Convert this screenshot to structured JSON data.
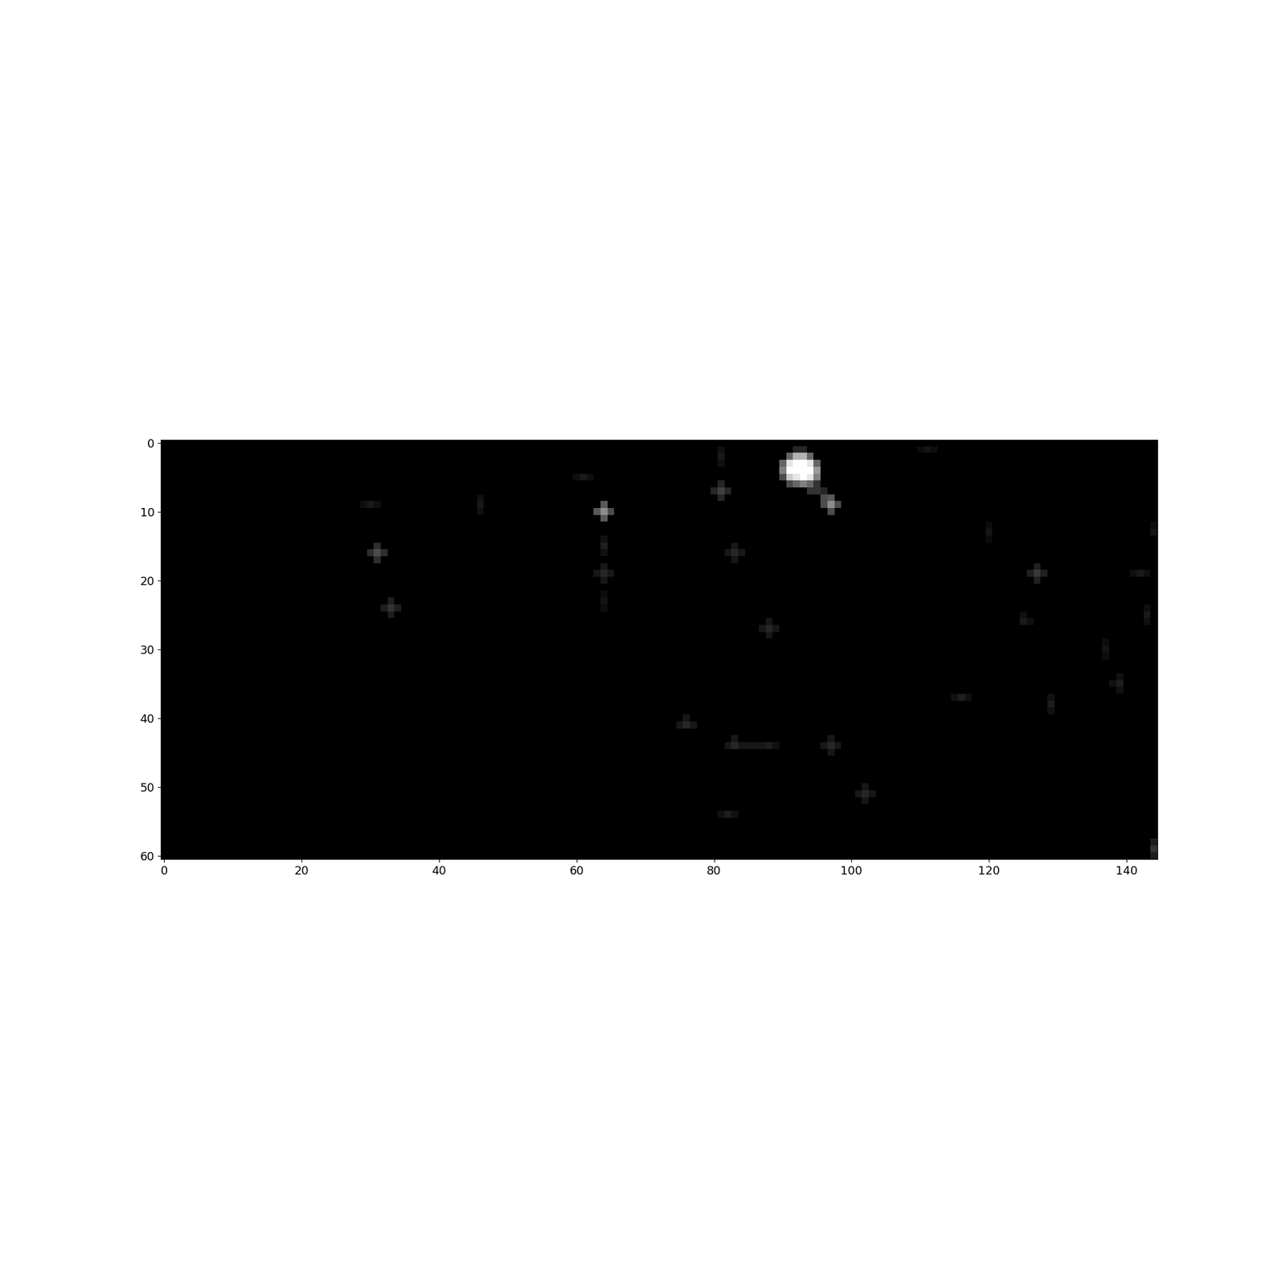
{
  "chart_data": {
    "type": "heatmap",
    "shape": [
      61,
      145
    ],
    "xlim": [
      -0.5,
      144.5
    ],
    "ylim": [
      60.5,
      -0.5
    ],
    "xticks": [
      0,
      20,
      40,
      60,
      80,
      100,
      120,
      140
    ],
    "yticks": [
      0,
      10,
      20,
      30,
      40,
      50,
      60
    ],
    "value_range": [
      0,
      1
    ],
    "color": "gray",
    "cells": [
      [
        1,
        92,
        0.15
      ],
      [
        1,
        93,
        0.15
      ],
      [
        2,
        91,
        0.4
      ],
      [
        2,
        92,
        0.7
      ],
      [
        2,
        93,
        0.7
      ],
      [
        2,
        94,
        0.4
      ],
      [
        3,
        90,
        0.4
      ],
      [
        3,
        91,
        0.9
      ],
      [
        3,
        92,
        1.0
      ],
      [
        3,
        93,
        1.0
      ],
      [
        3,
        94,
        0.9
      ],
      [
        3,
        95,
        0.4
      ],
      [
        4,
        90,
        0.5
      ],
      [
        4,
        91,
        1.0
      ],
      [
        4,
        92,
        1.0
      ],
      [
        4,
        93,
        1.0
      ],
      [
        4,
        94,
        1.0
      ],
      [
        4,
        95,
        0.6
      ],
      [
        5,
        90,
        0.3
      ],
      [
        5,
        91,
        0.8
      ],
      [
        5,
        92,
        0.9
      ],
      [
        5,
        93,
        1.0
      ],
      [
        5,
        94,
        0.9
      ],
      [
        5,
        95,
        0.5
      ],
      [
        6,
        91,
        0.3
      ],
      [
        6,
        92,
        0.4
      ],
      [
        6,
        93,
        0.5
      ],
      [
        6,
        94,
        0.4
      ],
      [
        6,
        95,
        0.2
      ],
      [
        7,
        94,
        0.2
      ],
      [
        7,
        95,
        0.2
      ],
      [
        7,
        96,
        0.15
      ],
      [
        8,
        96,
        0.3
      ],
      [
        8,
        97,
        0.35
      ],
      [
        9,
        96,
        0.3
      ],
      [
        9,
        97,
        0.55
      ],
      [
        9,
        98,
        0.3
      ],
      [
        10,
        97,
        0.3
      ],
      [
        10,
        64,
        0.55
      ],
      [
        9,
        64,
        0.35
      ],
      [
        11,
        64,
        0.35
      ],
      [
        10,
        63,
        0.35
      ],
      [
        10,
        65,
        0.3
      ],
      [
        7,
        81,
        0.25
      ],
      [
        6,
        81,
        0.15
      ],
      [
        8,
        81,
        0.15
      ],
      [
        7,
        80,
        0.15
      ],
      [
        7,
        82,
        0.15
      ],
      [
        2,
        81,
        0.1
      ],
      [
        1,
        81,
        0.06
      ],
      [
        3,
        81,
        0.06
      ],
      [
        16,
        31,
        0.3
      ],
      [
        15,
        31,
        0.18
      ],
      [
        17,
        31,
        0.18
      ],
      [
        16,
        30,
        0.18
      ],
      [
        16,
        32,
        0.18
      ],
      [
        24,
        33,
        0.2
      ],
      [
        23,
        33,
        0.12
      ],
      [
        25,
        33,
        0.12
      ],
      [
        24,
        32,
        0.12
      ],
      [
        24,
        34,
        0.12
      ],
      [
        9,
        30,
        0.1
      ],
      [
        9,
        29,
        0.06
      ],
      [
        9,
        31,
        0.06
      ],
      [
        9,
        46,
        0.1
      ],
      [
        8,
        46,
        0.06
      ],
      [
        10,
        46,
        0.06
      ],
      [
        5,
        61,
        0.1
      ],
      [
        5,
        60,
        0.06
      ],
      [
        5,
        62,
        0.06
      ],
      [
        15,
        64,
        0.12
      ],
      [
        14,
        64,
        0.07
      ],
      [
        16,
        64,
        0.07
      ],
      [
        19,
        64,
        0.15
      ],
      [
        18,
        64,
        0.09
      ],
      [
        20,
        64,
        0.09
      ],
      [
        19,
        63,
        0.09
      ],
      [
        19,
        65,
        0.09
      ],
      [
        23,
        64,
        0.08
      ],
      [
        22,
        64,
        0.05
      ],
      [
        24,
        64,
        0.05
      ],
      [
        16,
        83,
        0.15
      ],
      [
        16,
        82,
        0.09
      ],
      [
        16,
        84,
        0.09
      ],
      [
        15,
        83,
        0.09
      ],
      [
        17,
        83,
        0.09
      ],
      [
        27,
        88,
        0.15
      ],
      [
        27,
        87,
        0.09
      ],
      [
        27,
        89,
        0.09
      ],
      [
        26,
        88,
        0.09
      ],
      [
        28,
        88,
        0.09
      ],
      [
        1,
        111,
        0.08
      ],
      [
        1,
        110,
        0.05
      ],
      [
        1,
        112,
        0.05
      ],
      [
        13,
        120,
        0.08
      ],
      [
        12,
        120,
        0.05
      ],
      [
        14,
        120,
        0.05
      ],
      [
        19,
        127,
        0.22
      ],
      [
        18,
        127,
        0.13
      ],
      [
        20,
        127,
        0.13
      ],
      [
        19,
        126,
        0.13
      ],
      [
        19,
        128,
        0.13
      ],
      [
        19,
        142,
        0.1
      ],
      [
        19,
        141,
        0.06
      ],
      [
        19,
        143,
        0.06
      ],
      [
        13,
        144,
        0.08
      ],
      [
        12,
        144,
        0.05
      ],
      [
        25,
        143,
        0.1
      ],
      [
        24,
        143,
        0.06
      ],
      [
        26,
        143,
        0.06
      ],
      [
        26,
        125,
        0.1
      ],
      [
        25,
        125,
        0.06
      ],
      [
        26,
        126,
        0.06
      ],
      [
        30,
        137,
        0.08
      ],
      [
        29,
        137,
        0.05
      ],
      [
        31,
        137,
        0.05
      ],
      [
        35,
        139,
        0.12
      ],
      [
        34,
        139,
        0.07
      ],
      [
        36,
        139,
        0.07
      ],
      [
        35,
        138,
        0.07
      ],
      [
        37,
        116,
        0.12
      ],
      [
        37,
        115,
        0.07
      ],
      [
        37,
        117,
        0.07
      ],
      [
        38,
        129,
        0.12
      ],
      [
        37,
        129,
        0.07
      ],
      [
        39,
        129,
        0.07
      ],
      [
        41,
        76,
        0.15
      ],
      [
        40,
        76,
        0.09
      ],
      [
        41,
        75,
        0.09
      ],
      [
        41,
        77,
        0.09
      ],
      [
        44,
        83,
        0.15
      ],
      [
        44,
        82,
        0.09
      ],
      [
        44,
        84,
        0.09
      ],
      [
        43,
        83,
        0.09
      ],
      [
        44,
        88,
        0.12
      ],
      [
        44,
        87,
        0.09
      ],
      [
        44,
        89,
        0.07
      ],
      [
        44,
        86,
        0.09
      ],
      [
        44,
        85,
        0.09
      ],
      [
        44,
        97,
        0.15
      ],
      [
        43,
        97,
        0.09
      ],
      [
        45,
        97,
        0.09
      ],
      [
        44,
        96,
        0.09
      ],
      [
        44,
        98,
        0.09
      ],
      [
        51,
        102,
        0.15
      ],
      [
        50,
        102,
        0.09
      ],
      [
        52,
        102,
        0.09
      ],
      [
        51,
        101,
        0.09
      ],
      [
        51,
        103,
        0.09
      ],
      [
        54,
        82,
        0.12
      ],
      [
        54,
        81,
        0.07
      ],
      [
        54,
        83,
        0.07
      ],
      [
        59,
        144,
        0.2
      ],
      [
        58,
        144,
        0.12
      ],
      [
        60,
        144,
        0.12
      ]
    ]
  }
}
